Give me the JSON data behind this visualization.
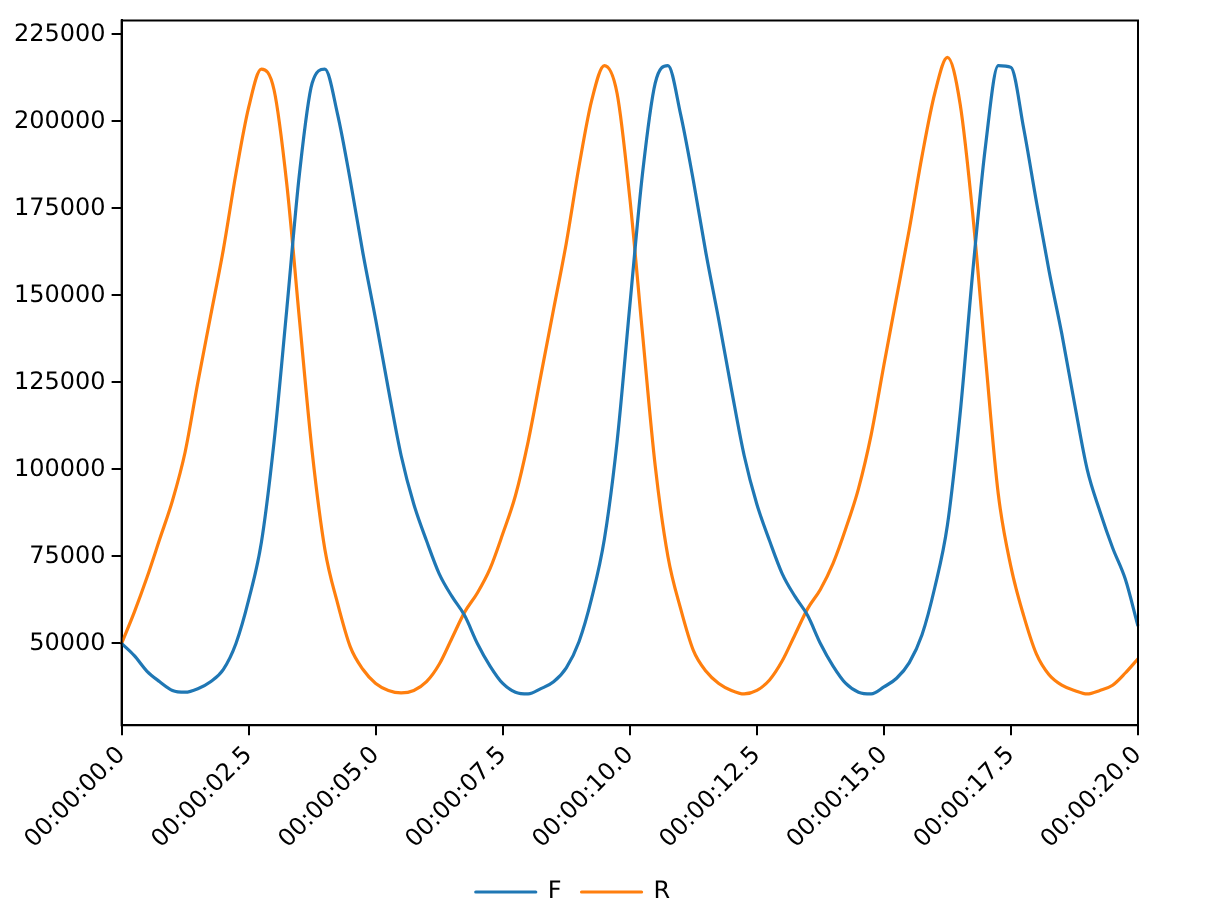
{
  "chart_data": {
    "type": "line",
    "categories": [
      "00:00:00.0",
      null,
      null,
      null,
      null,
      null,
      null,
      null,
      null,
      null,
      "00:00:02.5",
      null,
      null,
      null,
      null,
      null,
      null,
      null,
      null,
      null,
      "00:00:05.0",
      null,
      null,
      null,
      null,
      null,
      null,
      null,
      null,
      null,
      "00:00:07.5",
      null,
      null,
      null,
      null,
      null,
      null,
      null,
      null,
      null,
      "00:00:10.0",
      null,
      null,
      null,
      null,
      null,
      null,
      null,
      null,
      null,
      "00:00:12.5",
      null,
      null,
      null,
      null,
      null,
      null,
      null,
      null,
      null,
      "00:00:15.0",
      null,
      null,
      null,
      null,
      null,
      null,
      null,
      null,
      null,
      "00:00:17.5",
      null,
      null,
      null,
      null,
      null,
      null,
      null,
      null,
      null,
      "00:00:20.0"
    ],
    "ylim": [
      26500,
      229000
    ],
    "yticks": [
      50000,
      75000,
      100000,
      125000,
      150000,
      175000,
      200000,
      225000
    ],
    "grid": false,
    "legend": "bottom",
    "marker": "none",
    "line_style": "solid",
    "series": [
      {
        "name": "F",
        "color": "#1f77b4",
        "values": [
          50000,
          46500,
          42000,
          39000,
          36500,
          36000,
          37000,
          39000,
          42500,
          50000,
          62500,
          79000,
          108000,
          146000,
          185000,
          211000,
          215000,
          202000,
          183000,
          162000,
          143000,
          123000,
          104000,
          90000,
          79500,
          70000,
          63500,
          58000,
          50000,
          43500,
          38500,
          36000,
          35500,
          37000,
          39000,
          43000,
          50500,
          63000,
          80000,
          108000,
          147000,
          185000,
          211000,
          216000,
          202000,
          183000,
          162000,
          143000,
          123000,
          104000,
          90000,
          79500,
          70000,
          63500,
          58000,
          50000,
          43500,
          38500,
          36000,
          35500,
          37500,
          40000,
          44500,
          52500,
          66000,
          84000,
          116000,
          157000,
          193000,
          216000,
          215500,
          198000,
          177000,
          157000,
          139000,
          119000,
          100000,
          88000,
          77500,
          68500,
          55000
        ]
      },
      {
        "name": "R",
        "color": "#ff7f0e",
        "values": [
          50000,
          59000,
          69000,
          80000,
          91000,
          105000,
          125000,
          144000,
          163000,
          185000,
          204000,
          215000,
          209000,
          182000,
          143000,
          105000,
          77000,
          61500,
          49000,
          42500,
          38500,
          36500,
          35800,
          36500,
          39000,
          44000,
          51500,
          59000,
          64500,
          71500,
          81500,
          92500,
          108000,
          127000,
          146000,
          165000,
          187000,
          206000,
          216000,
          208000,
          178000,
          139000,
          101000,
          75000,
          60000,
          48000,
          42000,
          38500,
          36500,
          35500,
          36500,
          39500,
          45000,
          52500,
          60000,
          65500,
          73000,
          83000,
          94500,
          110000,
          130000,
          149500,
          169000,
          190000,
          208000,
          218400,
          205000,
          173000,
          132000,
          93000,
          72000,
          58000,
          47000,
          41000,
          38000,
          36500,
          35500,
          36500,
          38000,
          41500,
          45600
        ]
      }
    ]
  }
}
